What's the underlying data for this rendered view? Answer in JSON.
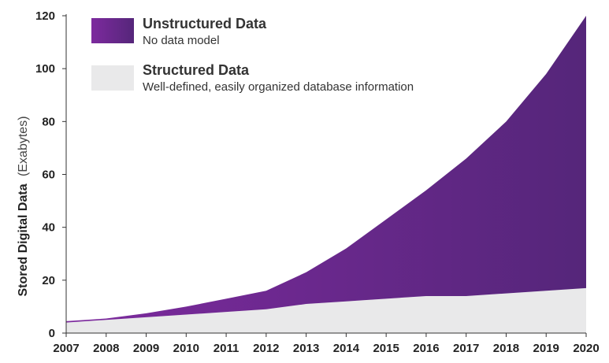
{
  "chart_data": {
    "type": "area",
    "stacked": true,
    "x": [
      2007,
      2008,
      2009,
      2010,
      2011,
      2012,
      2013,
      2014,
      2015,
      2016,
      2017,
      2018,
      2019,
      2020
    ],
    "x_tick_labels": [
      "2007",
      "2008",
      "2009",
      "2010",
      "2011",
      "2012",
      "2013",
      "2014",
      "2015",
      "2016",
      "2017",
      "2018",
      "2019",
      "2020"
    ],
    "y_ticks": [
      0,
      20,
      40,
      60,
      80,
      100,
      120
    ],
    "y_tick_labels": [
      "0",
      "20",
      "40",
      "60",
      "80",
      "100",
      "120"
    ],
    "ylim": [
      0,
      120
    ],
    "xlim": [
      2007,
      2020
    ],
    "ylabel_bold": "Stored Digital Data",
    "ylabel_light": "(Exabytes)",
    "grid": false,
    "legend_position": "top-left",
    "series": [
      {
        "name": "Structured Data",
        "description": "Well-defined, easily organized database information",
        "color": "#e9e9ea",
        "values": [
          4,
          5,
          6,
          7,
          8,
          9,
          11,
          12,
          13,
          14,
          14,
          15,
          16,
          17
        ]
      },
      {
        "name": "Unstructured Data",
        "description": "No data model",
        "color": "#7d2a9e",
        "color_end": "#55267a",
        "values": [
          0.5,
          0.5,
          1.5,
          3,
          5,
          7,
          12,
          20,
          30,
          40,
          52,
          65,
          82,
          103
        ]
      }
    ]
  }
}
